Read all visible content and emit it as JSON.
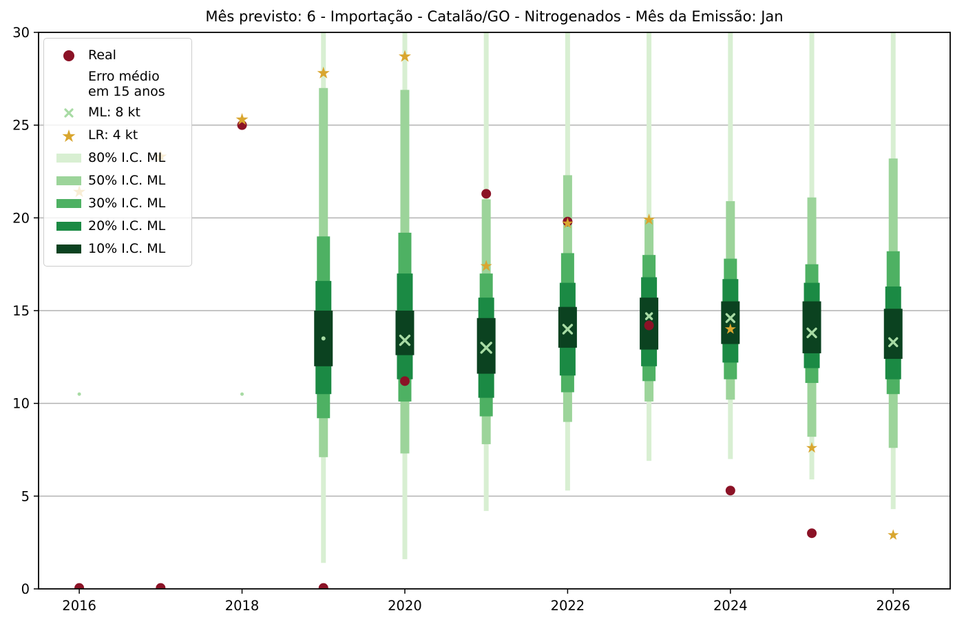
{
  "title": "Mês previsto: 6 - Importação - Catalão/GO - Nitrogenados - Mês da Emissão: Jan",
  "colors": {
    "real": "#8b1226",
    "lr": "#d9a62f",
    "ml": "#a8dba4",
    "ci80": "#d8efd2",
    "ci50": "#9cd49a",
    "ci30": "#4eb163",
    "ci20": "#1b8a44",
    "ci10": "#0b4220",
    "grid": "#b2b2b2",
    "axis": "#000000"
  },
  "legend": {
    "position": "upper left",
    "items": [
      {
        "label": "Real",
        "marker": "dot",
        "color_key": "real"
      },
      {
        "label": "Erro médio\nem 15 anos",
        "marker": "none",
        "color_key": ""
      },
      {
        "label": "ML: 8 kt",
        "marker": "x",
        "color_key": "ml"
      },
      {
        "label": "LR: 4 kt",
        "marker": "star",
        "color_key": "lr"
      },
      {
        "label": "80% I.C. ML",
        "marker": "patch",
        "color_key": "ci80"
      },
      {
        "label": "50% I.C. ML",
        "marker": "patch",
        "color_key": "ci50"
      },
      {
        "label": "30% I.C. ML",
        "marker": "patch",
        "color_key": "ci30"
      },
      {
        "label": "20% I.C. ML",
        "marker": "patch",
        "color_key": "ci20"
      },
      {
        "label": "10% I.C. ML",
        "marker": "patch",
        "color_key": "ci10"
      }
    ]
  },
  "chart_data": {
    "type": "scatter",
    "subtype": "forecast-with-nested-confidence-bars",
    "xlabel": "",
    "ylabel": "",
    "xlim": [
      2015.5,
      2026.7
    ],
    "ylim": [
      0,
      30
    ],
    "xticks": [
      2016,
      2018,
      2020,
      2022,
      2024,
      2026
    ],
    "yticks": [
      0,
      5,
      10,
      15,
      20,
      25,
      30
    ],
    "grid": "horizontal-only",
    "ci_widths": {
      "p80": 7,
      "p50": 13,
      "p30": 19,
      "p20": 23,
      "p10": 27
    },
    "series": {
      "real": {
        "name": "Real",
        "points": [
          {
            "year": 2016,
            "value": 0.05
          },
          {
            "year": 2017,
            "value": 0.05
          },
          {
            "year": 2018,
            "value": 25.0
          },
          {
            "year": 2019,
            "value": 0.05
          },
          {
            "year": 2020,
            "value": 11.2
          },
          {
            "year": 2021,
            "value": 21.3
          },
          {
            "year": 2022,
            "value": 19.8
          },
          {
            "year": 2023,
            "value": 14.2
          },
          {
            "year": 2024,
            "value": 5.3
          },
          {
            "year": 2025,
            "value": 3.0
          }
        ],
        "marker_size": 14
      },
      "ml": {
        "name": "ML: 8 kt",
        "points": [
          {
            "year": 2016,
            "value": 10.5,
            "size": 5
          },
          {
            "year": 2018,
            "value": 10.5,
            "size": 5
          },
          {
            "year": 2019,
            "value": 13.5,
            "size": 6
          },
          {
            "year": 2020,
            "value": 13.4,
            "size": 13
          },
          {
            "year": 2021,
            "value": 13.0,
            "size": 14
          },
          {
            "year": 2022,
            "value": 14.0,
            "size": 12
          },
          {
            "year": 2023,
            "value": 14.7,
            "size": 8
          },
          {
            "year": 2024,
            "value": 14.6,
            "size": 11
          },
          {
            "year": 2025,
            "value": 13.8,
            "size": 12
          },
          {
            "year": 2026,
            "value": 13.3,
            "size": 11
          }
        ]
      },
      "lr": {
        "name": "LR: 4 kt",
        "points": [
          {
            "year": 2016,
            "value": 21.4,
            "size": 17
          },
          {
            "year": 2017,
            "value": 23.3,
            "size": 17
          },
          {
            "year": 2018,
            "value": 25.3,
            "size": 17
          },
          {
            "year": 2019,
            "value": 27.8,
            "size": 17
          },
          {
            "year": 2020,
            "value": 28.7,
            "size": 17
          },
          {
            "year": 2021,
            "value": 17.4,
            "size": 16
          },
          {
            "year": 2022,
            "value": 19.7,
            "size": 15
          },
          {
            "year": 2023,
            "value": 19.9,
            "size": 16
          },
          {
            "year": 2024,
            "value": 14.0,
            "size": 15
          },
          {
            "year": 2025,
            "value": 7.6,
            "size": 15
          },
          {
            "year": 2026,
            "value": 2.9,
            "size": 15
          }
        ]
      },
      "ci": [
        {
          "year": 2019,
          "p80": [
            1.4,
            30
          ],
          "p50": [
            7.1,
            27.0
          ],
          "p30": [
            9.2,
            19.0
          ],
          "p20": [
            10.5,
            16.6
          ],
          "p10": [
            12.0,
            15.0
          ]
        },
        {
          "year": 2020,
          "p80": [
            1.6,
            30
          ],
          "p50": [
            7.3,
            26.9
          ],
          "p30": [
            10.1,
            19.2
          ],
          "p20": [
            11.3,
            17.0
          ],
          "p10": [
            12.6,
            15.0
          ]
        },
        {
          "year": 2021,
          "p80": [
            4.2,
            30
          ],
          "p50": [
            7.8,
            21.0
          ],
          "p30": [
            9.3,
            17.0
          ],
          "p20": [
            10.3,
            15.7
          ],
          "p10": [
            11.6,
            14.6
          ]
        },
        {
          "year": 2022,
          "p80": [
            5.3,
            30
          ],
          "p50": [
            9.0,
            22.3
          ],
          "p30": [
            10.6,
            18.1
          ],
          "p20": [
            11.5,
            16.5
          ],
          "p10": [
            13.0,
            15.2
          ]
        },
        {
          "year": 2023,
          "p80": [
            6.9,
            30
          ],
          "p50": [
            10.1,
            19.9
          ],
          "p30": [
            11.2,
            18.0
          ],
          "p20": [
            12.0,
            16.8
          ],
          "p10": [
            12.9,
            15.7
          ]
        },
        {
          "year": 2024,
          "p80": [
            7.0,
            30
          ],
          "p50": [
            10.2,
            20.9
          ],
          "p30": [
            11.3,
            17.8
          ],
          "p20": [
            12.2,
            16.7
          ],
          "p10": [
            13.2,
            15.5
          ]
        },
        {
          "year": 2025,
          "p80": [
            5.9,
            30
          ],
          "p50": [
            8.2,
            21.1
          ],
          "p30": [
            11.1,
            17.5
          ],
          "p20": [
            11.9,
            16.5
          ],
          "p10": [
            12.7,
            15.5
          ]
        },
        {
          "year": 2026,
          "p80": [
            4.3,
            30
          ],
          "p50": [
            7.6,
            23.2
          ],
          "p30": [
            10.5,
            18.2
          ],
          "p20": [
            11.3,
            16.3
          ],
          "p10": [
            12.4,
            15.1
          ]
        }
      ]
    }
  }
}
